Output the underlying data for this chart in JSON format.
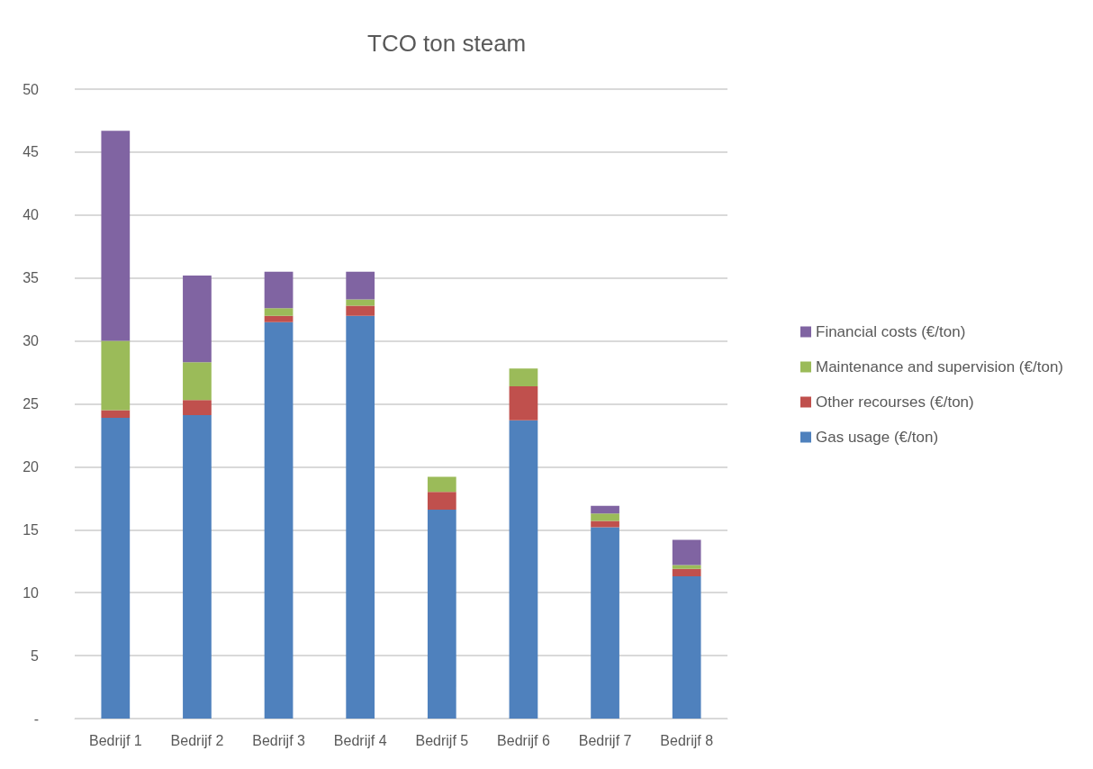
{
  "chart_data": {
    "type": "bar",
    "title": "TCO ton steam",
    "stacked": true,
    "categories": [
      "Bedrijf 1",
      "Bedrijf 2",
      "Bedrijf 3",
      "Bedrijf 4",
      "Bedrijf 5",
      "Bedrijf 6",
      "Bedrijf 7",
      "Bedrijf 8"
    ],
    "series": [
      {
        "name": "Gas usage (€/ton)",
        "color": "#4f81bd",
        "values": [
          23.9,
          24.1,
          31.5,
          32.0,
          16.6,
          23.7,
          15.2,
          11.3
        ]
      },
      {
        "name": "Other recourses (€/ton)",
        "color": "#c0504d",
        "values": [
          0.6,
          1.2,
          0.5,
          0.8,
          1.4,
          2.7,
          0.5,
          0.6
        ]
      },
      {
        "name": "Maintenance and supervision (€/ton)",
        "color": "#9bbb59",
        "values": [
          5.5,
          3.0,
          0.6,
          0.5,
          1.2,
          1.4,
          0.6,
          0.3
        ]
      },
      {
        "name": "Financial costs (€/ton)",
        "color": "#8064a2",
        "values": [
          16.7,
          6.9,
          2.9,
          2.2,
          null,
          null,
          0.6,
          2.0
        ]
      }
    ],
    "ylim": [
      0,
      50
    ],
    "yticks": [
      {
        "value": 0,
        "label": "-"
      },
      5,
      10,
      15,
      20,
      25,
      30,
      35,
      40,
      45,
      50
    ],
    "grid": "y",
    "legend": "right"
  }
}
